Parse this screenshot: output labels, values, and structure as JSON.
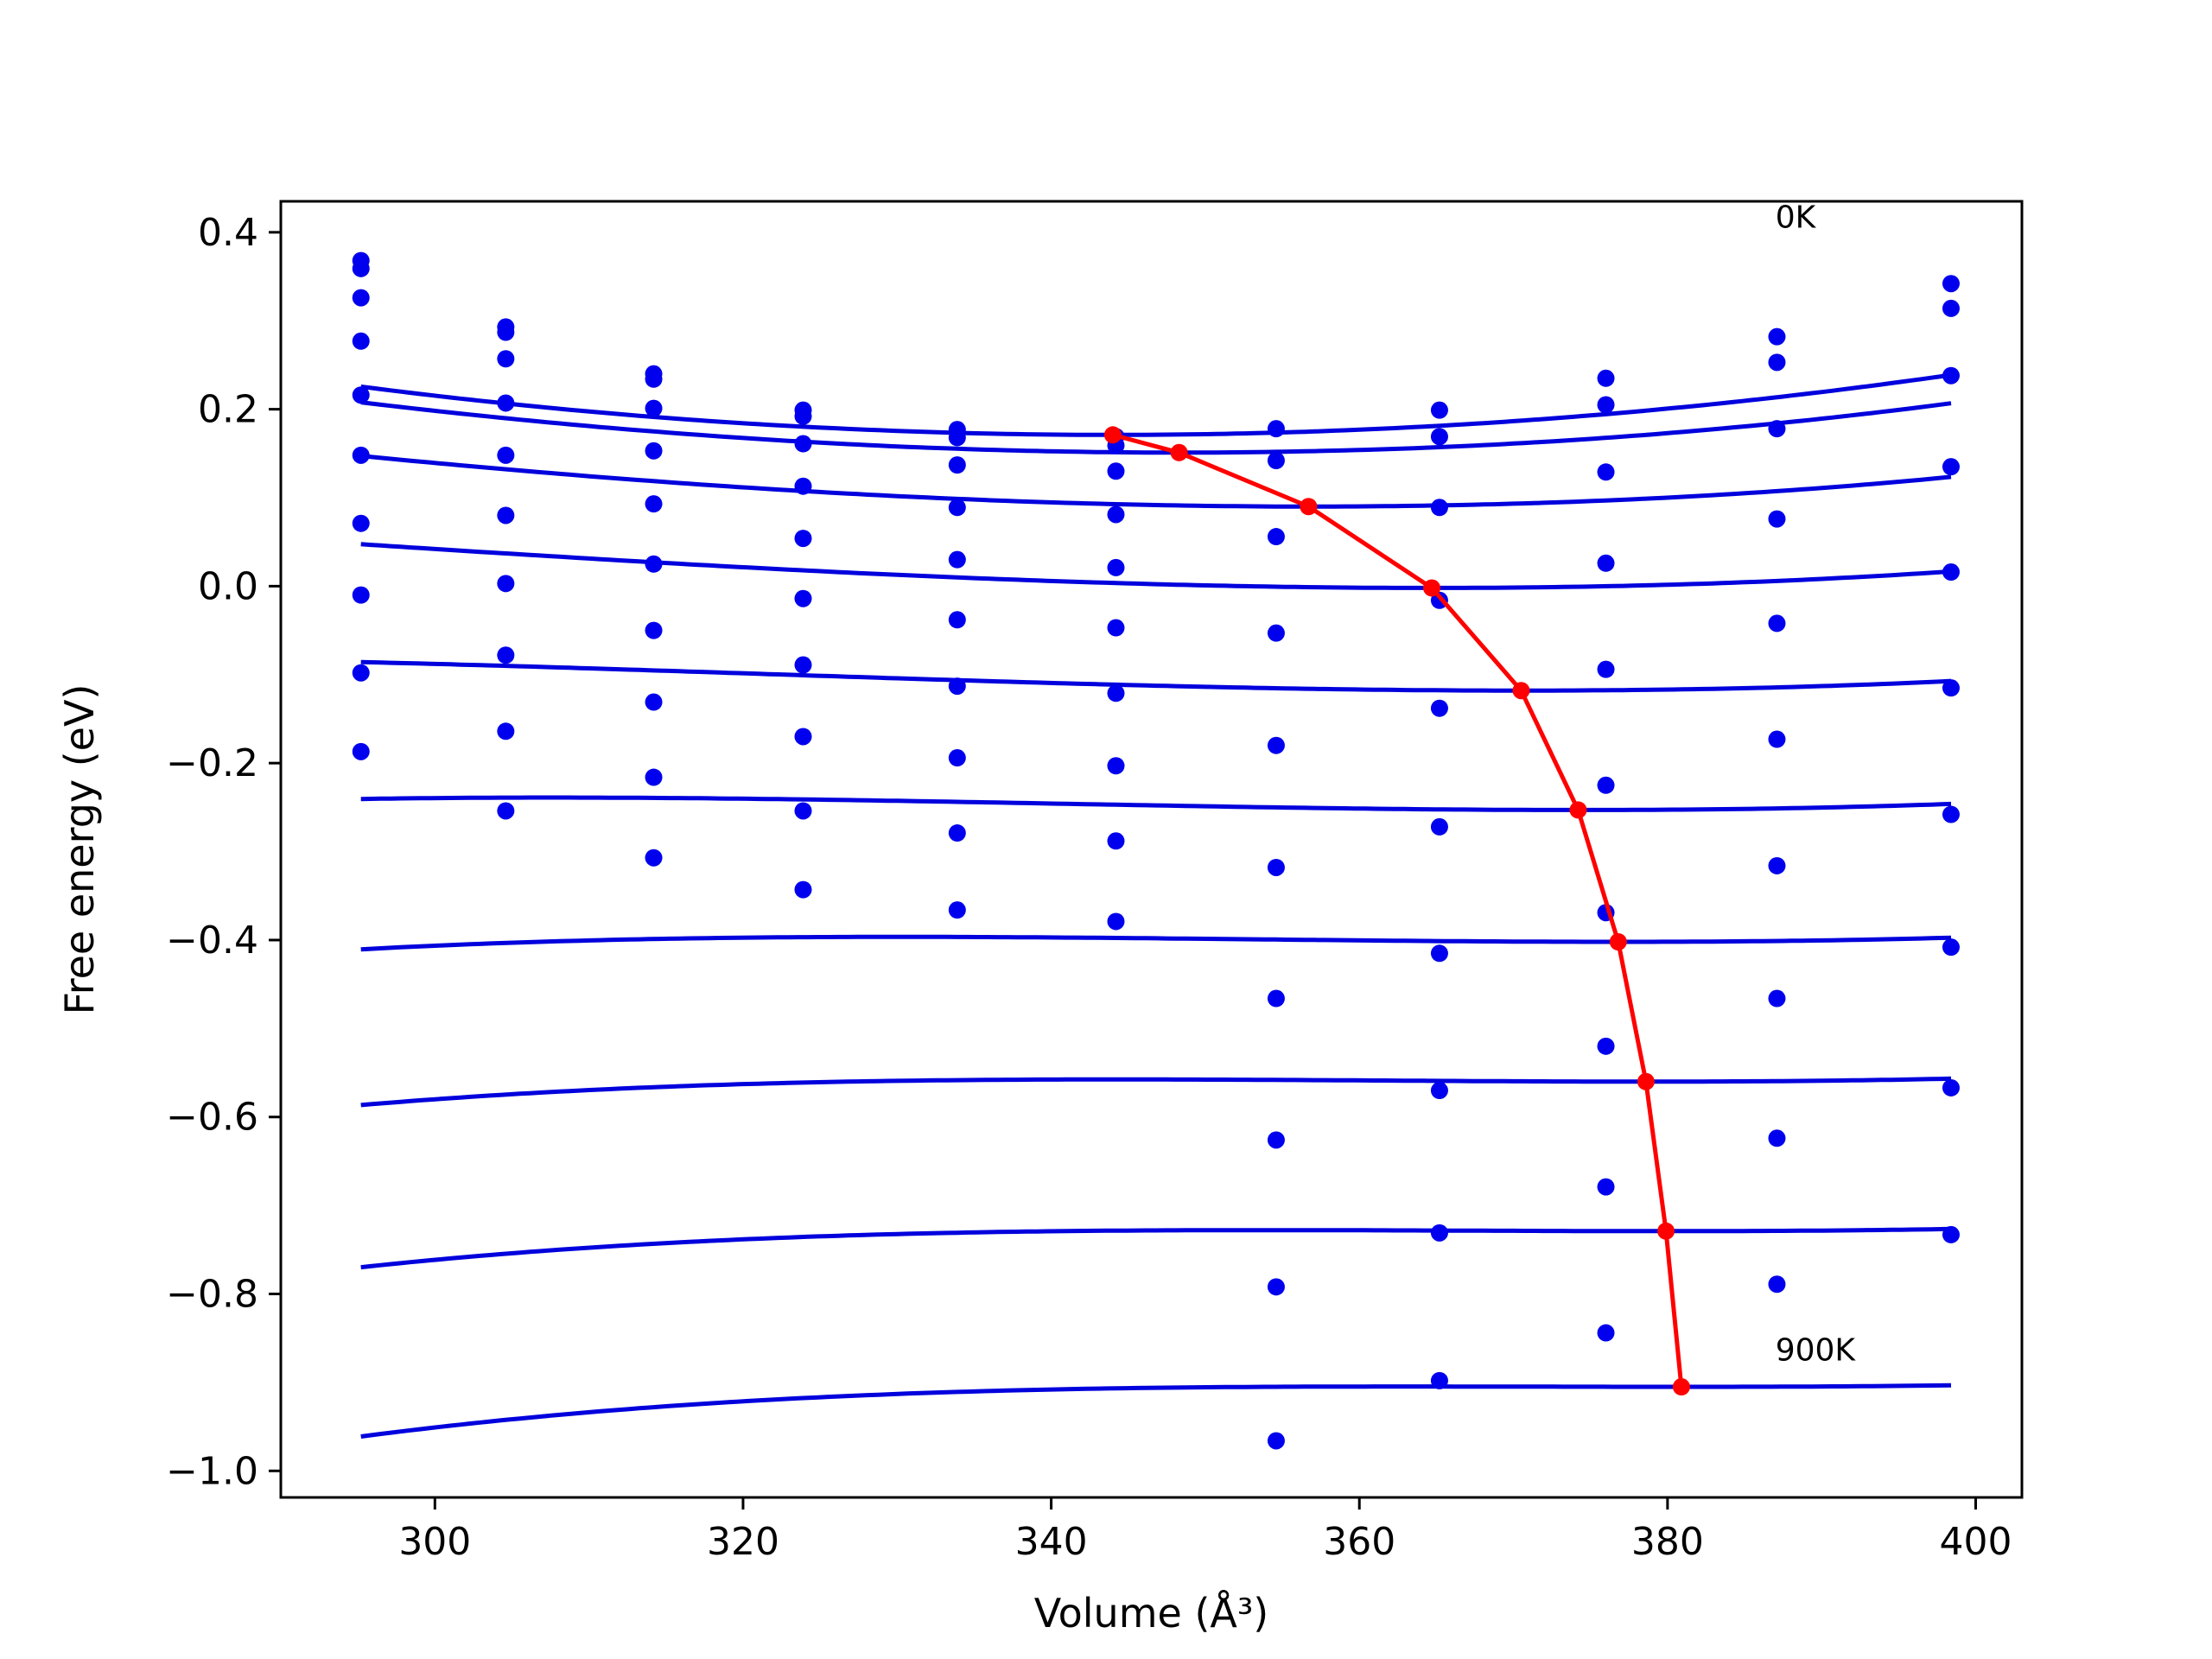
{
  "chart_data": {
    "type": "scatter",
    "title": "",
    "xlabel": "Volume (Å³)",
    "ylabel": "Free energy (eV)",
    "xlim": [
      290,
      403
    ],
    "ylim": [
      -1.03,
      0.435
    ],
    "xticks": [
      300,
      320,
      340,
      360,
      380,
      400
    ],
    "yticks": [
      0.4,
      0.2,
      0.0,
      -0.2,
      -0.4,
      -0.6,
      -0.8,
      -1.0
    ],
    "xtick_labels": [
      "300",
      "320",
      "340",
      "360",
      "380",
      "400"
    ],
    "ytick_labels": [
      "0.4",
      "0.2",
      "0.0",
      "−0.2",
      "−0.4",
      "−0.6",
      "−0.8",
      "−1.0"
    ],
    "grid": false,
    "legend": "none",
    "colors": {
      "points": "#0000ee",
      "fits": "#0000dd",
      "minima": "#ff0000"
    },
    "annotations": [
      {
        "text": "0K",
        "x": 387,
        "y": 0.405
      },
      {
        "text": "900K",
        "x": 387,
        "y": -0.875
      }
    ],
    "volumes": [
      295.2,
      304.6,
      314.2,
      323.9,
      333.9,
      344.2,
      354.6,
      365.2,
      376.0,
      387.1,
      398.4
    ],
    "series": [
      {
        "points": [
          0.368,
          0.293,
          0.24,
          0.199,
          0.177,
          0.169,
          0.178,
          0.199,
          0.235,
          0.282,
          0.342
        ],
        "fit": {
          "vmin": 344.0,
          "emin": 0.171,
          "a": 2.29e-05,
          "b": 0.0,
          "x0": 295.2,
          "x1": 398.4
        }
      },
      {
        "points": [
          0.359,
          0.287,
          0.234,
          0.192,
          0.168,
          0.159,
          0.142,
          0.169,
          0.205,
          0.253,
          0.314
        ],
        "fit": {
          "vmin": 348.3,
          "emin": 0.151,
          "a": 2.12e-05,
          "b": 2e-08,
          "x0": 295.2,
          "x1": 398.4
        }
      },
      {
        "points": [
          0.326,
          0.257,
          0.201,
          0.161,
          0.137,
          0.13,
          0.056,
          0.089,
          0.129,
          0.178,
          0.238
        ],
        "fit": {
          "vmin": 356.7,
          "emin": 0.09,
          "a": 1.76e-05,
          "b": 4e-08,
          "x0": 295.2,
          "x1": 398.4
        }
      },
      {
        "points": [
          0.277,
          0.207,
          0.153,
          0.113,
          0.089,
          0.081,
          -0.053,
          -0.016,
          0.026,
          0.076,
          0.135
        ],
        "fit": {
          "vmin": 364.7,
          "emin": -0.002,
          "a": 1.44e-05,
          "b": 6e-08,
          "x0": 295.2,
          "x1": 398.4
        }
      },
      {
        "points": [
          0.216,
          0.148,
          0.093,
          0.054,
          0.03,
          0.021,
          -0.18,
          -0.138,
          -0.094,
          -0.042,
          0.016
        ],
        "fit": {
          "vmin": 370.5,
          "emin": -0.118,
          "a": 1.17e-05,
          "b": 8e-08,
          "x0": 295.2,
          "x1": 398.4
        }
      },
      {
        "points": [
          0.148,
          0.08,
          0.025,
          -0.014,
          -0.038,
          -0.047,
          -0.318,
          -0.272,
          -0.225,
          -0.173,
          -0.115
        ],
        "fit": {
          "vmin": 374.2,
          "emin": -0.253,
          "a": 9.5e-06,
          "b": 9.5e-08,
          "x0": 295.2,
          "x1": 398.4
        }
      },
      {
        "points": [
          0.071,
          0.003,
          -0.05,
          -0.089,
          -0.113,
          -0.121,
          -0.466,
          -0.415,
          -0.369,
          -0.316,
          -0.258
        ],
        "fit": {
          "vmin": 376.8,
          "emin": -0.402,
          "a": 7.7e-06,
          "b": 1.1e-07,
          "x0": 295.2,
          "x1": 398.4
        }
      },
      {
        "points": [
          -0.01,
          -0.078,
          -0.131,
          -0.17,
          -0.194,
          -0.203,
          -0.626,
          -0.57,
          -0.52,
          -0.466,
          -0.408
        ],
        "fit": {
          "vmin": 378.6,
          "emin": -0.56,
          "a": 6.2e-06,
          "b": 1.2e-07,
          "x0": 295.2,
          "x1": 398.4
        }
      },
      {
        "points": [
          -0.098,
          -0.164,
          -0.216,
          -0.254,
          -0.279,
          -0.288,
          -0.792,
          -0.731,
          -0.679,
          -0.624,
          -0.567
        ],
        "fit": {
          "vmin": 379.9,
          "emin": -0.729,
          "a": 4.9e-06,
          "b": 1.25e-07,
          "x0": 295.2,
          "x1": 398.4
        }
      },
      {
        "points": [
          -0.187,
          -0.254,
          -0.307,
          -0.343,
          -0.366,
          -0.379,
          -0.966,
          -0.898,
          -0.844,
          -0.789,
          -0.733
        ],
        "fit": {
          "vmin": 380.9,
          "emin": -0.905,
          "a": 3.5e-06,
          "b": 1.3e-07,
          "x0": 295.2,
          "x1": 398.4
        }
      }
    ],
    "minima": {
      "x": [
        344.0,
        348.3,
        356.7,
        364.7,
        370.5,
        374.2,
        376.8,
        378.6,
        379.9,
        380.9
      ],
      "y": [
        0.171,
        0.151,
        0.09,
        -0.002,
        -0.118,
        -0.253,
        -0.402,
        -0.56,
        -0.729,
        -0.905
      ]
    }
  }
}
